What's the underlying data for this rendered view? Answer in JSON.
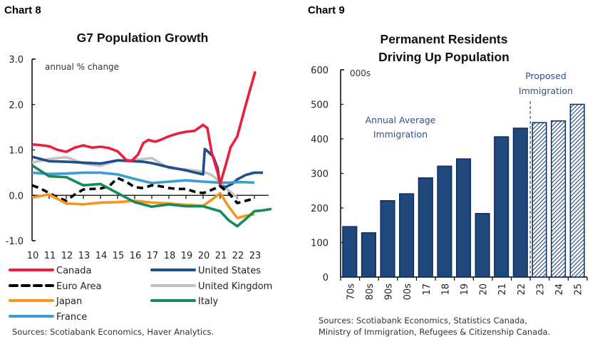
{
  "chart_data": [
    {
      "id": "chart8",
      "label": "Chart 8",
      "type": "line",
      "title": "G7 Population Growth",
      "unit_label": "annual % change",
      "xlabel": "",
      "ylabel": "",
      "ylim": [
        -1.0,
        3.0
      ],
      "yticks": [
        "3.0",
        "2.0",
        "1.0",
        "0.0",
        "-1.0"
      ],
      "ytick_values": [
        3.0,
        2.0,
        1.0,
        0.0,
        -1.0
      ],
      "xlim": [
        2010,
        2023.9
      ],
      "xticks": [
        "10",
        "11",
        "12",
        "13",
        "14",
        "15",
        "16",
        "17",
        "18",
        "19",
        "20",
        "21",
        "22",
        "23"
      ],
      "xtick_values": [
        2010,
        2011,
        2012,
        2013,
        2014,
        2015,
        2016,
        2017,
        2018,
        2019,
        2020,
        2021,
        2022,
        2023
      ],
      "grid": false,
      "legend_position": "bottom",
      "series": [
        {
          "name": "Canada",
          "color": "#e8203a",
          "style": "solid",
          "x": [
            2010,
            2010.4,
            2011,
            2011.5,
            2012,
            2012.5,
            2013,
            2013.5,
            2014,
            2014.5,
            2015,
            2015.5,
            2015.8,
            2016.2,
            2016.5,
            2016.8,
            2017.2,
            2017.5,
            2018,
            2018.5,
            2019,
            2019.5,
            2020,
            2020.25,
            2020.5,
            2020.85,
            2021,
            2021.35,
            2021.6,
            2022,
            2022.5,
            2023.05
          ],
          "values": [
            1.12,
            1.11,
            1.08,
            1.0,
            0.96,
            1.05,
            1.1,
            1.05,
            1.07,
            1.04,
            0.97,
            0.78,
            0.75,
            0.9,
            1.15,
            1.22,
            1.18,
            1.22,
            1.3,
            1.36,
            1.4,
            1.42,
            1.55,
            1.48,
            0.95,
            0.5,
            0.25,
            0.7,
            1.05,
            1.3,
            2.0,
            2.73
          ]
        },
        {
          "name": "United States",
          "color": "#1f4e8c",
          "style": "solid",
          "x": [
            2010,
            2010.5,
            2011,
            2012,
            2013,
            2014,
            2015,
            2016,
            2016.5,
            2017,
            2018,
            2019,
            2020,
            2020.1,
            2020.3,
            2020.6,
            2020.85,
            2021,
            2021.3,
            2021.7,
            2022,
            2022.5,
            2023,
            2023.5
          ],
          "values": [
            0.85,
            0.8,
            0.75,
            0.74,
            0.72,
            0.7,
            0.77,
            0.75,
            0.74,
            0.71,
            0.62,
            0.55,
            0.46,
            1.02,
            0.96,
            0.85,
            0.6,
            0.2,
            0.18,
            0.25,
            0.35,
            0.45,
            0.5,
            0.5
          ]
        },
        {
          "name": "Euro Area",
          "color": "#000000",
          "style": "dashed",
          "x": [
            2010,
            2010.5,
            2011,
            2011.5,
            2012,
            2012.5,
            2013,
            2013.5,
            2014,
            2014.5,
            2015,
            2015.5,
            2016,
            2016.5,
            2017,
            2017.5,
            2018,
            2018.5,
            2019,
            2019.5,
            2020,
            2020.5,
            2021,
            2021.5,
            2022,
            2022.5,
            2023
          ],
          "values": [
            0.22,
            0.15,
            0.05,
            -0.05,
            -0.12,
            0.02,
            0.13,
            0.14,
            0.15,
            0.2,
            0.38,
            0.3,
            0.18,
            0.16,
            0.22,
            0.2,
            0.16,
            0.14,
            0.14,
            0.08,
            0.05,
            0.12,
            0.2,
            0.05,
            -0.17,
            -0.12,
            -0.07
          ]
        },
        {
          "name": "United Kingdom",
          "color": "#c2c2c2",
          "style": "solid",
          "x": [
            2010,
            2010.5,
            2011,
            2012,
            2013,
            2014,
            2015,
            2016,
            2016.5,
            2017,
            2018,
            2019,
            2020,
            2020.5,
            2021,
            2021.5,
            2022
          ],
          "values": [
            0.72,
            0.76,
            0.8,
            0.84,
            0.7,
            0.65,
            0.77,
            0.78,
            0.8,
            0.82,
            0.6,
            0.57,
            0.52,
            0.45,
            0.3,
            0.1,
            -0.05
          ]
        },
        {
          "name": "Japan",
          "color": "#f7941d",
          "style": "solid",
          "x": [
            2010,
            2011,
            2012,
            2013,
            2014,
            2015,
            2016,
            2017,
            2018,
            2019,
            2020,
            2020.5,
            2021,
            2021.5,
            2022,
            2022.5,
            2023
          ],
          "values": [
            -0.05,
            0.02,
            -0.18,
            -0.2,
            -0.16,
            -0.15,
            -0.12,
            -0.16,
            -0.18,
            -0.21,
            -0.23,
            -0.1,
            0.05,
            -0.25,
            -0.5,
            -0.45,
            -0.42
          ]
        },
        {
          "name": "Italy",
          "color": "#168a57",
          "style": "solid",
          "x": [
            2010,
            2011,
            2012,
            2013,
            2014,
            2015,
            2016,
            2017,
            2018,
            2019,
            2020,
            2021,
            2021.5,
            2022,
            2022.5,
            2023,
            2023.5,
            2024
          ],
          "values": [
            0.66,
            0.42,
            0.4,
            0.22,
            0.25,
            0.05,
            -0.15,
            -0.25,
            -0.2,
            -0.24,
            -0.24,
            -0.35,
            -0.55,
            -0.68,
            -0.52,
            -0.35,
            -0.33,
            -0.3
          ]
        },
        {
          "name": "France",
          "color": "#3f9bd5",
          "style": "solid",
          "x": [
            2010,
            2011,
            2012,
            2013,
            2014,
            2015,
            2016,
            2017,
            2018,
            2019,
            2020,
            2021,
            2021.5,
            2022,
            2022.5,
            2023
          ],
          "values": [
            0.5,
            0.47,
            0.48,
            0.5,
            0.5,
            0.46,
            0.36,
            0.27,
            0.3,
            0.33,
            0.3,
            0.28,
            0.28,
            0.29,
            0.29,
            0.28
          ]
        }
      ],
      "source": "Sources: Scotiabank Economics, Haver Analytics."
    },
    {
      "id": "chart9",
      "label": "Chart 9",
      "type": "bar",
      "title_lines": [
        "Permanent Residents",
        "Driving Up Population"
      ],
      "unit_label": "000s",
      "xlabel": "",
      "ylabel": "",
      "ylim": [
        0,
        600
      ],
      "yticks": [
        "600",
        "500",
        "400",
        "300",
        "200",
        "100",
        "0"
      ],
      "ytick_values": [
        600,
        500,
        400,
        300,
        200,
        100,
        0
      ],
      "grid": false,
      "categories": [
        "70s",
        "80s",
        "90s",
        "00s",
        "17",
        "18",
        "19",
        "20",
        "21",
        "22",
        "23",
        "24",
        "25"
      ],
      "values": [
        146,
        128,
        221,
        241,
        287,
        321,
        342,
        184,
        406,
        431,
        447,
        452,
        500
      ],
      "bar_kind": [
        "actual",
        "actual",
        "actual",
        "actual",
        "actual",
        "actual",
        "actual",
        "actual",
        "actual",
        "actual",
        "proposed",
        "proposed",
        "proposed"
      ],
      "bar_color": "#1f497d",
      "bar_border_color": "#0d2c5e",
      "annotations": [
        {
          "lines": [
            "Annual Average",
            "Immigration"
          ],
          "region": "actual"
        },
        {
          "lines": [
            "Proposed",
            "Immigration"
          ],
          "region": "proposed"
        }
      ],
      "divider_between": [
        "22",
        "23"
      ],
      "source_lines": [
        "Sources: Scotiabank Economics, Statistics Canada,",
        "Ministry of Immigration, Refugees & Citizenship Canada."
      ]
    }
  ]
}
